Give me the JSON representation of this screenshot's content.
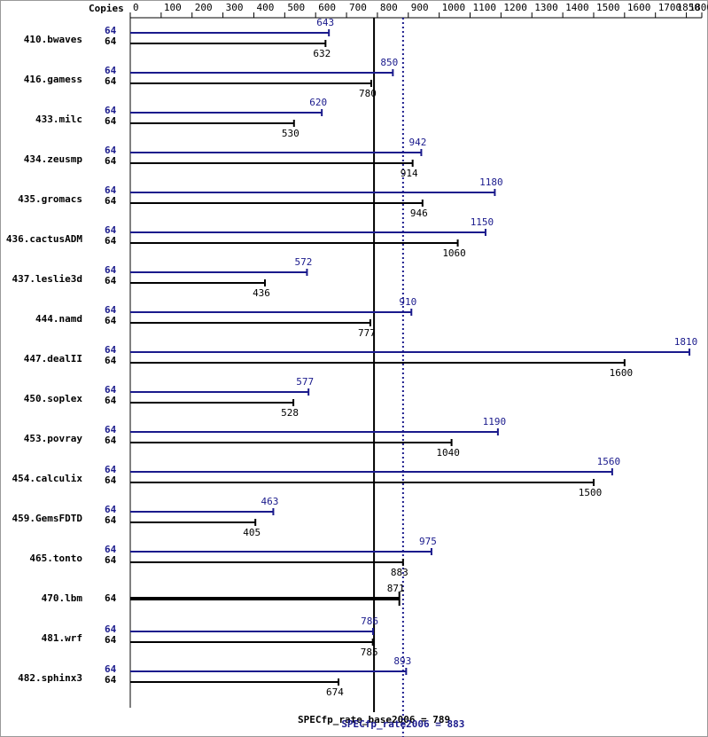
{
  "chart_data": {
    "type": "bar",
    "orientation": "horizontal",
    "copies_label": "Copies",
    "categories": [
      "410.bwaves",
      "416.gamess",
      "433.milc",
      "434.zeusmp",
      "435.gromacs",
      "436.cactusADM",
      "437.leslie3d",
      "444.namd",
      "447.dealII",
      "450.soplex",
      "453.povray",
      "454.calculix",
      "459.GemsFDTD",
      "465.tonto",
      "470.lbm",
      "481.wrf",
      "482.sphinx3"
    ],
    "series": [
      {
        "name": "SPECfp_rate2006",
        "color": "#1a1a8c",
        "copies": [
          64,
          64,
          64,
          64,
          64,
          64,
          64,
          64,
          64,
          64,
          64,
          64,
          64,
          64,
          null,
          64,
          64
        ],
        "values": [
          643,
          850,
          620,
          942,
          1180,
          1150,
          572,
          910,
          1810,
          577,
          1190,
          1560,
          463,
          975,
          null,
          786,
          893
        ]
      },
      {
        "name": "SPECfp_rate_base2006",
        "color": "#000000",
        "copies": [
          64,
          64,
          64,
          64,
          64,
          64,
          64,
          64,
          64,
          64,
          64,
          64,
          64,
          64,
          64,
          64,
          64
        ],
        "values": [
          632,
          780,
          530,
          914,
          946,
          1060,
          436,
          777,
          1600,
          528,
          1040,
          1500,
          405,
          883,
          871,
          785,
          674
        ]
      }
    ],
    "reference_lines": [
      {
        "label": "SPECfp_rate_base2006 = 789",
        "value": 789,
        "color": "#000000",
        "style": "solid"
      },
      {
        "label": "SPECfp_rate2006 = 883",
        "value": 883,
        "color": "#1a1a8c",
        "style": "dotted"
      }
    ],
    "xlim": [
      0,
      1850
    ],
    "xticks": [
      0,
      100,
      200,
      300,
      400,
      500,
      600,
      700,
      800,
      900,
      1000,
      1100,
      1200,
      1300,
      1400,
      1500,
      1600,
      1700,
      1800,
      1850
    ]
  }
}
